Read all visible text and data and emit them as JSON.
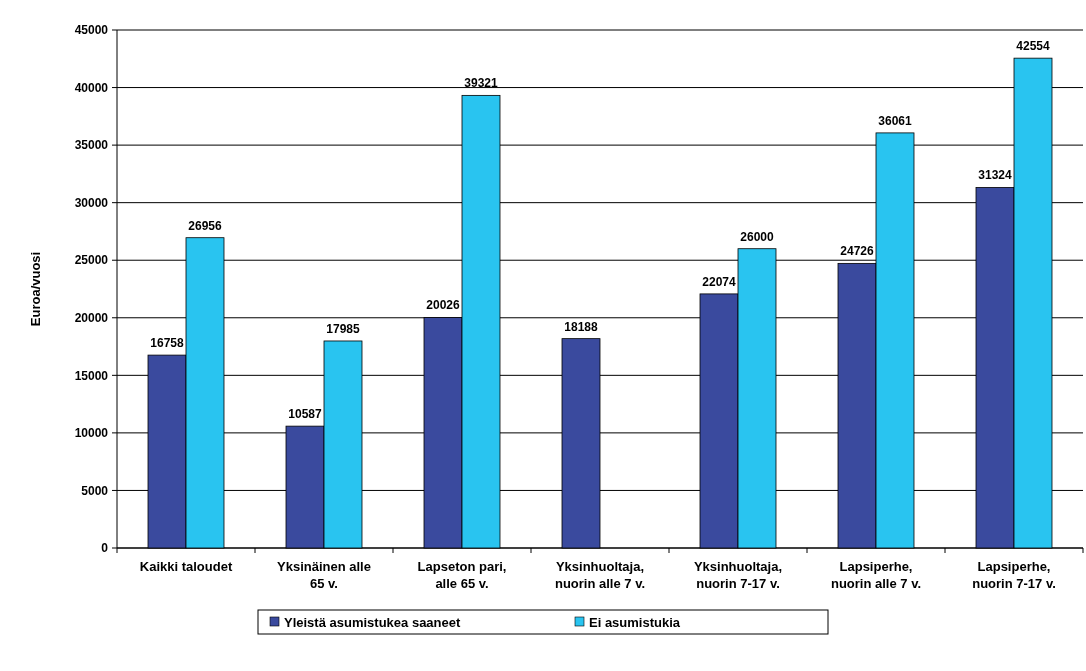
{
  "chart_data": {
    "type": "bar",
    "ylabel": "Euroa/vuosi",
    "categories": [
      "Kaikki taloudet",
      "Yksinäinen alle 65 v.",
      "Lapseton pari, alle 65 v.",
      "Yksinhuoltaja, nuorin alle 7 v.",
      "Yksinhuoltaja, nuorin 7-17 v.",
      "Lapsiperhe, nuorin alle 7 v.",
      "Lapsiperhe, nuorin 7-17 v."
    ],
    "series": [
      {
        "name": "Yleistä asumistukea saaneet",
        "color": "#3a4a9e",
        "values": [
          16758,
          10587,
          20026,
          18188,
          22074,
          24726,
          31324
        ]
      },
      {
        "name": "Ei asumistukia",
        "color": "#29c4f0",
        "values": [
          26956,
          17985,
          39321,
          null,
          26000,
          36061,
          42554
        ]
      }
    ],
    "ylim": [
      0,
      45000
    ],
    "yticks": [
      0,
      5000,
      10000,
      15000,
      20000,
      25000,
      30000,
      35000,
      40000,
      45000
    ],
    "grid": "y",
    "data_labels": true,
    "legend": "bottom"
  }
}
